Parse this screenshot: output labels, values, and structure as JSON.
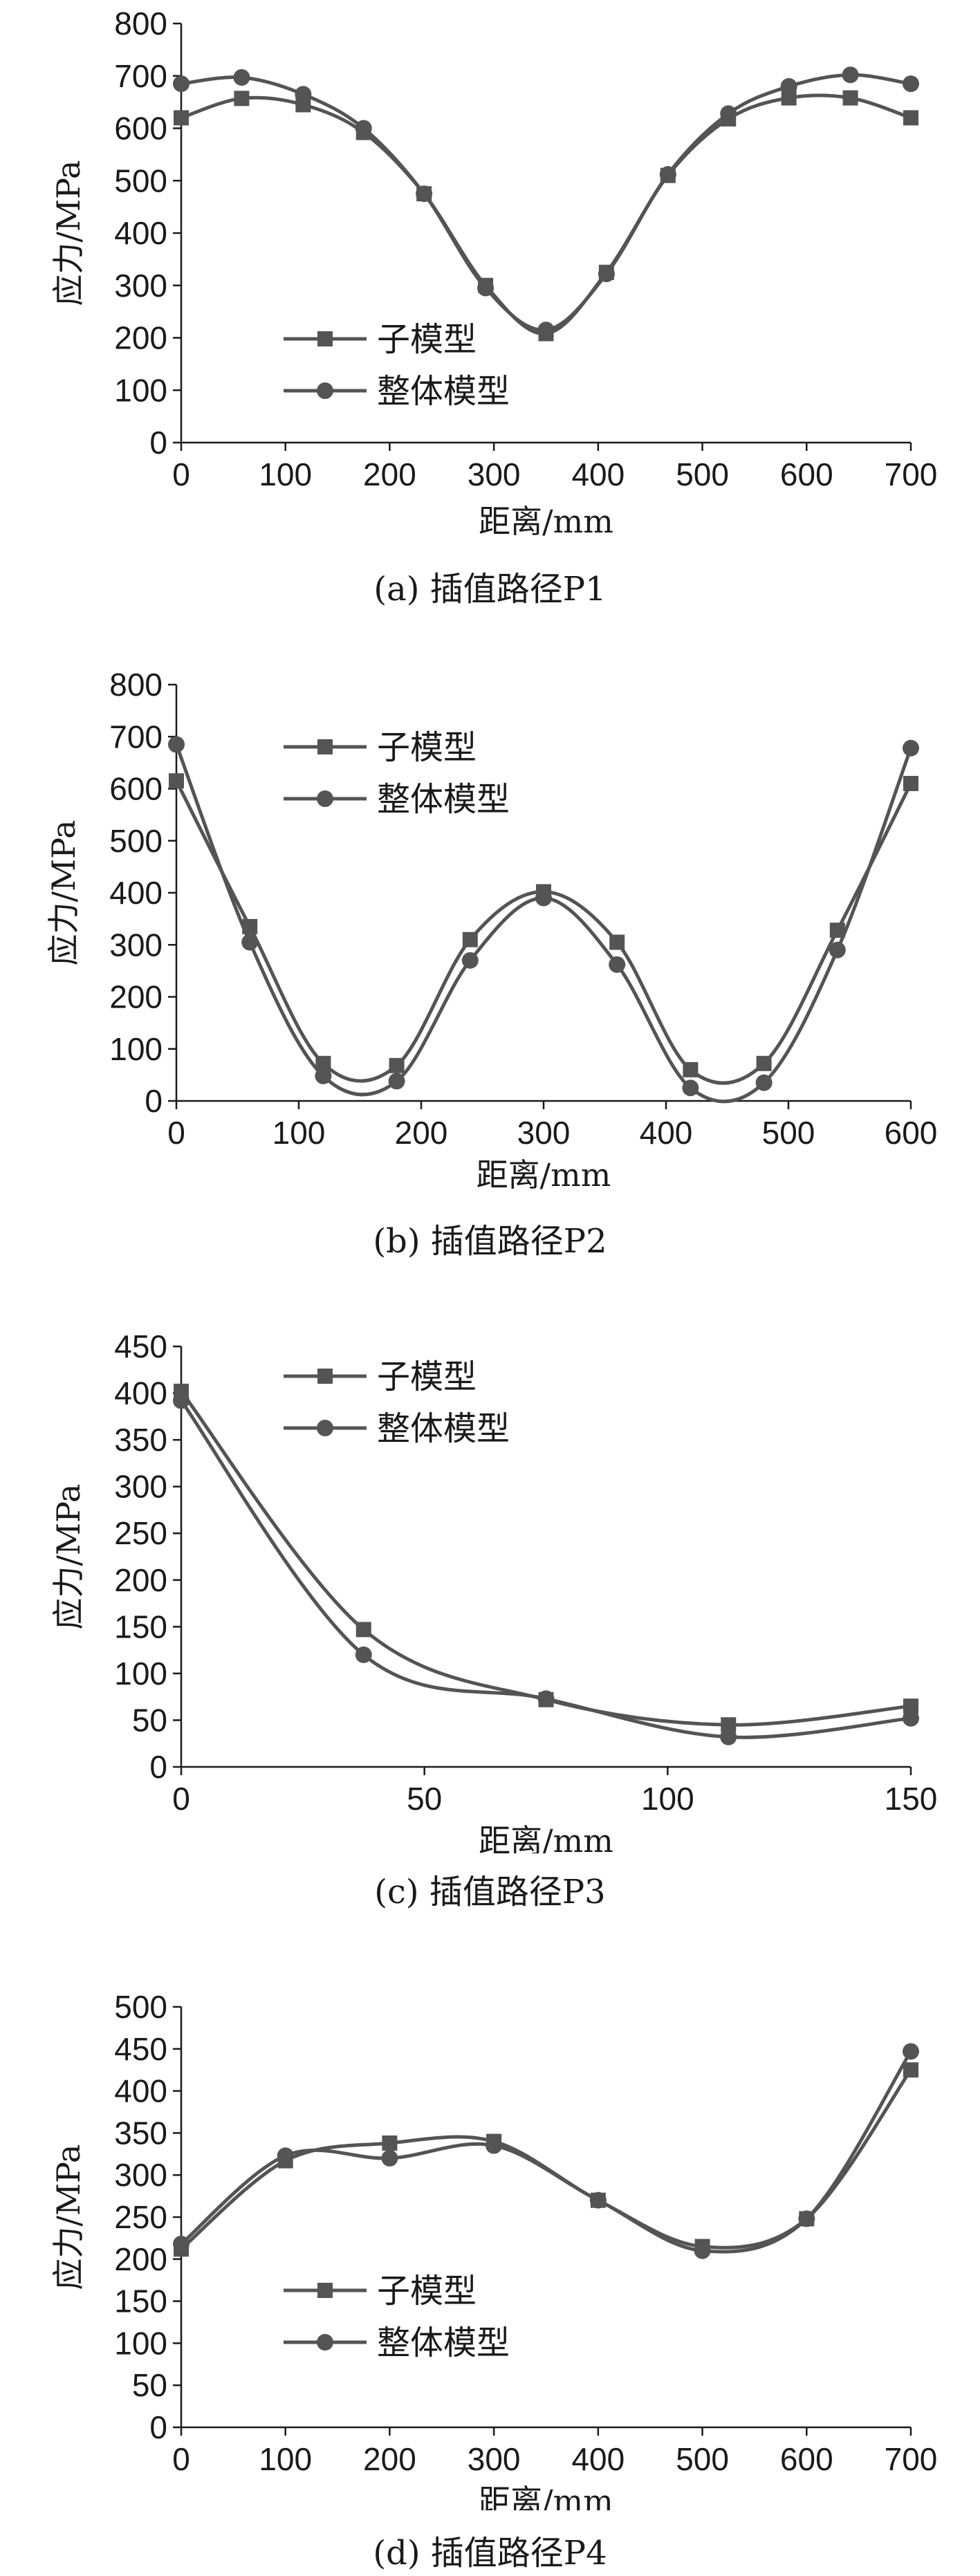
{
  "chart_data": [
    {
      "type": "line",
      "caption": "(a) 插值路径P1",
      "xlabel": "距离/mm",
      "ylabel": "应力/MPa",
      "xlim": [
        0,
        700
      ],
      "ylim": [
        0,
        800
      ],
      "xticks": [
        0,
        100,
        200,
        300,
        400,
        500,
        600,
        700
      ],
      "yticks": [
        0,
        100,
        200,
        300,
        400,
        500,
        600,
        700,
        800
      ],
      "legend_position": "lower-left",
      "series": [
        {
          "name": "子模型",
          "marker": "square",
          "x": [
            0,
            58,
            117,
            175,
            233,
            292,
            350,
            408,
            467,
            525,
            583,
            642,
            700
          ],
          "y": [
            620,
            657,
            645,
            592,
            475,
            300,
            208,
            325,
            510,
            618,
            658,
            658,
            620
          ]
        },
        {
          "name": "整体模型",
          "marker": "circle",
          "x": [
            0,
            58,
            117,
            175,
            233,
            292,
            350,
            408,
            467,
            525,
            583,
            642,
            700
          ],
          "y": [
            685,
            697,
            665,
            600,
            475,
            295,
            215,
            322,
            512,
            628,
            680,
            702,
            685
          ]
        }
      ]
    },
    {
      "type": "line",
      "caption": "(b) 插值路径P2",
      "xlabel": "距离/mm",
      "ylabel": "应力/MPa",
      "xlim": [
        0,
        600
      ],
      "ylim": [
        0,
        800
      ],
      "xticks": [
        0,
        100,
        200,
        300,
        400,
        500,
        600
      ],
      "yticks": [
        0,
        100,
        200,
        300,
        400,
        500,
        600,
        700,
        800
      ],
      "legend_position": "top-left",
      "series": [
        {
          "name": "子模型",
          "marker": "square",
          "x": [
            0,
            60,
            120,
            180,
            240,
            300,
            360,
            420,
            480,
            540,
            600
          ],
          "y": [
            615,
            335,
            72,
            68,
            310,
            402,
            305,
            60,
            72,
            328,
            610
          ]
        },
        {
          "name": "整体模型",
          "marker": "circle",
          "x": [
            0,
            60,
            120,
            180,
            240,
            300,
            360,
            420,
            480,
            540,
            600
          ],
          "y": [
            685,
            305,
            48,
            38,
            270,
            390,
            262,
            25,
            35,
            290,
            678
          ]
        }
      ]
    },
    {
      "type": "line",
      "caption": "(c) 插值路径P3",
      "xlabel": "距离/mm",
      "ylabel": "应力/MPa",
      "xlim": [
        0,
        150
      ],
      "ylim": [
        0,
        450
      ],
      "xticks": [
        0,
        50,
        100,
        150
      ],
      "yticks": [
        0,
        50,
        100,
        150,
        200,
        250,
        300,
        350,
        400,
        450
      ],
      "legend_position": "top-center",
      "series": [
        {
          "name": "子模型",
          "marker": "square",
          "x": [
            0,
            37.5,
            75,
            112.5,
            150
          ],
          "y": [
            402,
            147,
            72,
            45,
            65
          ]
        },
        {
          "name": "整体模型",
          "marker": "circle",
          "x": [
            0,
            37.5,
            75,
            112.5,
            150
          ],
          "y": [
            392,
            120,
            73,
            32,
            52
          ]
        }
      ]
    },
    {
      "type": "line",
      "caption": "(d) 插值路径P4",
      "xlabel": "距离/mm",
      "ylabel": "应力/MPa",
      "xlim": [
        0,
        700
      ],
      "ylim": [
        0,
        500
      ],
      "xticks": [
        0,
        100,
        200,
        300,
        400,
        500,
        600,
        700
      ],
      "yticks": [
        0,
        50,
        100,
        150,
        200,
        250,
        300,
        350,
        400,
        450,
        500
      ],
      "legend_position": "lower-left",
      "series": [
        {
          "name": "子模型",
          "marker": "square",
          "x": [
            0,
            100,
            200,
            300,
            400,
            500,
            600,
            700
          ],
          "y": [
            212,
            317,
            338,
            340,
            270,
            215,
            248,
            425
          ]
        },
        {
          "name": "整体模型",
          "marker": "circle",
          "x": [
            0,
            100,
            200,
            300,
            400,
            500,
            600,
            700
          ],
          "y": [
            218,
            323,
            320,
            335,
            270,
            210,
            248,
            447
          ]
        }
      ]
    }
  ],
  "colors": {
    "series_line": "#545454",
    "axis": "#1a1a1a"
  }
}
